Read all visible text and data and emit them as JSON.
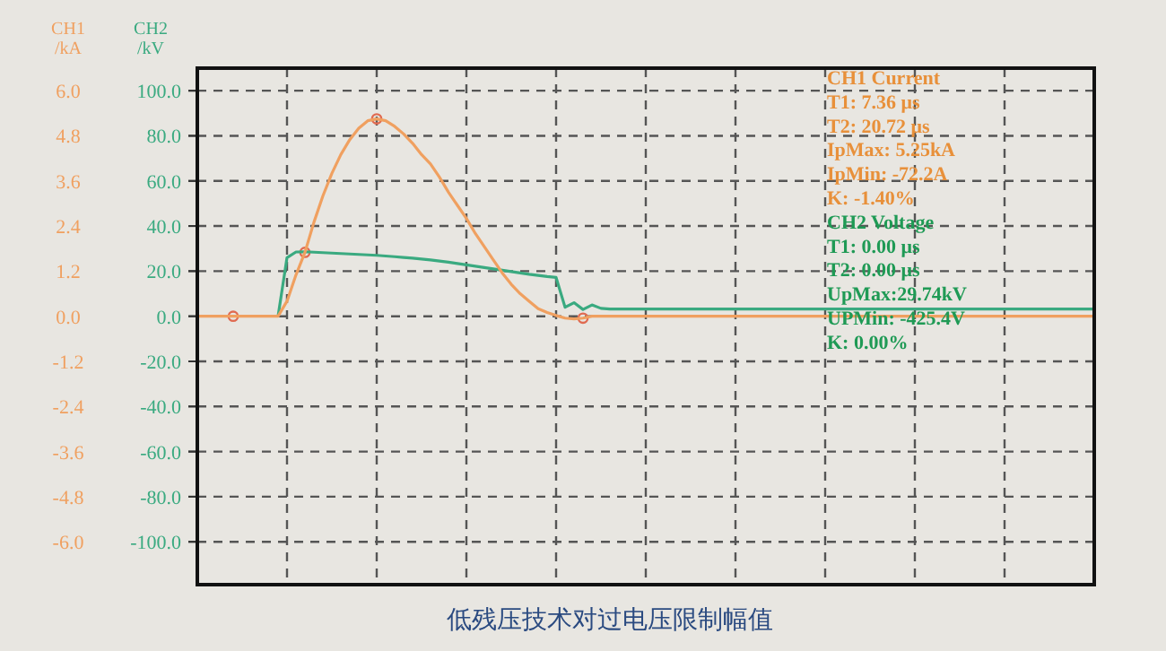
{
  "chart_data": {
    "type": "line",
    "title": "低残压技术对过电压限制幅值",
    "ylabel": "CH1\n/kA",
    "y2label": "CH2\n/kV",
    "categories": [
      null,
      null,
      null,
      null,
      null,
      null,
      null,
      null,
      null,
      null,
      null,
      null,
      null,
      null,
      null,
      null,
      null,
      null,
      null,
      null,
      null,
      null,
      null,
      null,
      null,
      null,
      null,
      null,
      null,
      null,
      null,
      null,
      null,
      null,
      null,
      null,
      null,
      null,
      null,
      null,
      null,
      null,
      null,
      null,
      null,
      null,
      null,
      null,
      null,
      null,
      null,
      null,
      null,
      null,
      null,
      null,
      null,
      null,
      null,
      null,
      null,
      null,
      null,
      null,
      null,
      null,
      null,
      null,
      null,
      null,
      null,
      null,
      null,
      null,
      null,
      null,
      null,
      null,
      null,
      null,
      null,
      null,
      null,
      null,
      null,
      null,
      null,
      null,
      null,
      null,
      null,
      null,
      null,
      null,
      null,
      null,
      null,
      null,
      null,
      null,
      null
    ],
    "series": [
      {
        "color": "#f0a060",
        "values": [
          0,
          0,
          0,
          0,
          0,
          0,
          0,
          0,
          0,
          0,
          0.4,
          1.1,
          1.7,
          2.5,
          3.2,
          3.8,
          4.3,
          4.7,
          5.0,
          5.2,
          5.25,
          5.2,
          5.05,
          4.85,
          4.6,
          4.3,
          4.05,
          3.7,
          3.3,
          2.95,
          2.6,
          2.2,
          1.85,
          1.5,
          1.15,
          0.85,
          0.6,
          0.4,
          0.2,
          0.1,
          0.02,
          -0.05,
          -0.07,
          -0.05,
          0,
          0,
          0,
          0,
          0,
          0,
          0,
          0,
          0,
          0,
          0,
          0,
          0,
          0,
          0,
          0,
          0,
          0,
          0,
          0,
          0,
          0,
          0,
          0,
          0,
          0,
          0,
          0,
          0,
          0,
          0,
          0,
          0,
          0,
          0,
          0,
          0,
          0,
          0,
          0,
          0,
          0,
          0,
          0,
          0,
          0,
          0,
          0,
          0,
          0,
          0,
          0,
          0,
          0,
          0,
          0,
          0
        ]
      },
      {
        "color": "#3aaa80",
        "axis": "y2",
        "values": [
          null,
          null,
          null,
          null,
          null,
          null,
          null,
          null,
          null,
          0,
          26,
          28.5,
          28.6,
          28.4,
          28.2,
          28.0,
          27.8,
          27.6,
          27.4,
          27.2,
          27.0,
          26.7,
          26.4,
          26.1,
          25.8,
          25.4,
          25.0,
          24.5,
          24.0,
          23.4,
          22.8,
          22.2,
          21.6,
          21.0,
          20.4,
          19.8,
          19.2,
          18.6,
          18.1,
          17.6,
          17.2,
          4,
          6,
          3,
          5,
          3.5,
          3.2,
          3.2,
          3.2,
          3.2,
          3.2,
          3.2,
          3.2,
          3.2,
          3.2,
          3.2,
          3.2,
          3.2,
          3.2,
          3.2,
          3.2,
          3.2,
          3.2,
          3.2,
          3.2,
          3.2,
          3.2,
          3.2,
          3.2,
          3.2,
          3.2,
          3.2,
          3.2,
          3.2,
          3.2,
          3.2,
          3.2,
          3.2,
          3.2,
          3.2,
          3.2,
          3.2,
          3.2,
          3.2,
          3.2,
          3.2,
          3.2,
          3.2,
          3.2,
          3.2,
          3.2,
          3.2,
          3.2,
          3.2,
          3.2,
          3.2,
          3.2,
          3.2,
          3.2,
          3.2,
          3.2
        ]
      },
      {
        "type": "scatter",
        "marker": "circle",
        "color": "#e06a50",
        "values": [
          null,
          null,
          null,
          null,
          0,
          null,
          null,
          null,
          null,
          null,
          null,
          null,
          1.7,
          null,
          null,
          null,
          null,
          null,
          null,
          null,
          5.25,
          null,
          null,
          null,
          null,
          null,
          null,
          null,
          null,
          null,
          null,
          null,
          null,
          null,
          null,
          null,
          null,
          null,
          null,
          null,
          null,
          null,
          null,
          -0.05,
          null,
          null,
          null,
          null,
          null,
          null,
          null,
          null,
          null,
          null,
          null,
          null,
          null,
          null,
          null,
          null,
          null,
          null,
          null,
          null,
          null,
          null,
          null,
          null,
          null,
          null,
          null,
          null,
          null,
          null,
          null,
          null,
          null,
          null,
          null,
          null,
          null,
          null,
          null,
          null,
          null,
          null,
          null,
          null,
          null,
          null,
          null,
          null,
          null,
          null,
          null,
          null,
          null,
          null,
          null,
          null,
          null
        ]
      }
    ],
    "ylim": [
      -7.14,
      6.6
    ],
    "yticks": [
      {
        "value": -6,
        "label": "-6.0"
      },
      {
        "value": -4.8,
        "label": "-4.8"
      },
      {
        "value": -3.6,
        "label": "-3.6"
      },
      {
        "value": -2.4,
        "label": "-2.4"
      },
      {
        "value": -1.2,
        "label": "-1.2"
      },
      {
        "value": 0,
        "label": "0.0"
      },
      {
        "value": 1.2,
        "label": "1.2"
      },
      {
        "value": 2.4,
        "label": "2.4"
      },
      {
        "value": 3.6,
        "label": "3.6"
      },
      {
        "value": 4.8,
        "label": "4.8"
      },
      {
        "value": 6,
        "label": "6.0"
      }
    ],
    "y2lim": [
      -119,
      110
    ],
    "y2ticks": [
      {
        "value": -100,
        "label": "-100.0"
      },
      {
        "value": -80,
        "label": "-80.0"
      },
      {
        "value": -60,
        "label": "-60.0"
      },
      {
        "value": -40,
        "label": "-40.0"
      },
      {
        "value": -20,
        "label": "-20.0"
      },
      {
        "value": 0,
        "label": "0.0"
      },
      {
        "value": 20,
        "label": "20.0"
      },
      {
        "value": 40,
        "label": "40.0"
      },
      {
        "value": 60,
        "label": "60.0"
      },
      {
        "value": 80,
        "label": "80.0"
      },
      {
        "value": 100,
        "label": "100.0"
      }
    ],
    "grid": true,
    "marker": "none",
    "annotations": [
      "CH1 Current",
      "T1:        7.36 μs",
      "T2:        20.72 μs",
      "IpMax:   5.25kA",
      "IpMin:   -72.2A",
      "K:          -1.40%",
      "CH2 Voltage",
      "T1:        0.00 μs",
      "T2:        0.00 μs",
      "UpMax:29.74kV",
      "UPMin:   -425.4V",
      "K:          0.00%"
    ]
  }
}
